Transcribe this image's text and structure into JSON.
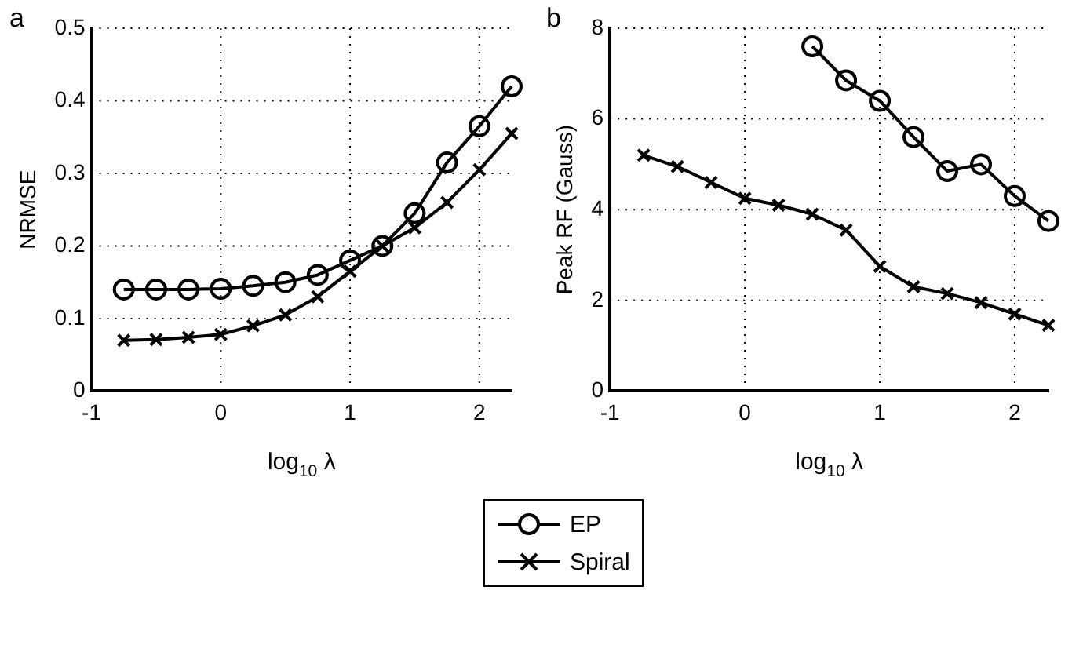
{
  "chart_data": [
    {
      "type": "line",
      "xlabel": "log$_{10}$ λ",
      "ylabel": "NRMSE",
      "annotations": [
        "a"
      ],
      "x": [
        -0.75,
        -0.5,
        -0.25,
        0,
        0.25,
        0.5,
        0.75,
        1,
        1.25,
        1.5,
        1.75,
        2,
        2.25
      ],
      "series": [
        {
          "name": "EP",
          "color": "#000000",
          "marker": "circle",
          "values": [
            0.14,
            0.14,
            0.14,
            0.141,
            0.145,
            0.15,
            0.16,
            0.18,
            0.2,
            0.245,
            0.315,
            0.365,
            0.42
          ]
        },
        {
          "name": "Spiral",
          "color": "#000000",
          "marker": "cross",
          "values": [
            0.07,
            0.071,
            0.074,
            0.078,
            0.09,
            0.105,
            0.13,
            0.165,
            0.2,
            0.225,
            0.26,
            0.305,
            0.355
          ]
        }
      ],
      "xlim": [
        -1,
        2.25
      ],
      "xticks": [
        -1,
        0,
        1,
        2
      ],
      "ylim": [
        0,
        0.5
      ],
      "yticks": [
        0,
        0.1,
        0.2,
        0.3,
        0.4,
        0.5
      ],
      "grid": true,
      "legend": "bottom"
    },
    {
      "type": "line",
      "xlabel": "log$_{10}$ λ",
      "ylabel": "Peak RF (Gauss)",
      "annotations": [
        "b"
      ],
      "x": [
        -0.75,
        -0.5,
        -0.25,
        0,
        0.25,
        0.5,
        0.75,
        1,
        1.25,
        1.5,
        1.75,
        2,
        2.25
      ],
      "series": [
        {
          "color": "#000000",
          "marker": "circle",
          "values": [
            null,
            null,
            null,
            null,
            null,
            7.6,
            6.85,
            6.4,
            5.6,
            4.85,
            5.0,
            4.3,
            3.75
          ]
        },
        {
          "color": "#000000",
          "marker": "cross",
          "values": [
            5.2,
            4.95,
            4.6,
            4.25,
            4.1,
            3.9,
            3.55,
            2.75,
            2.3,
            2.15,
            1.95,
            1.7,
            1.45
          ]
        }
      ],
      "xlim": [
        -1,
        2.25
      ],
      "xticks": [
        -1,
        0,
        1,
        2
      ],
      "ylim": [
        0,
        8
      ],
      "yticks": [
        0,
        2,
        4,
        6,
        8
      ],
      "grid": true
    }
  ]
}
